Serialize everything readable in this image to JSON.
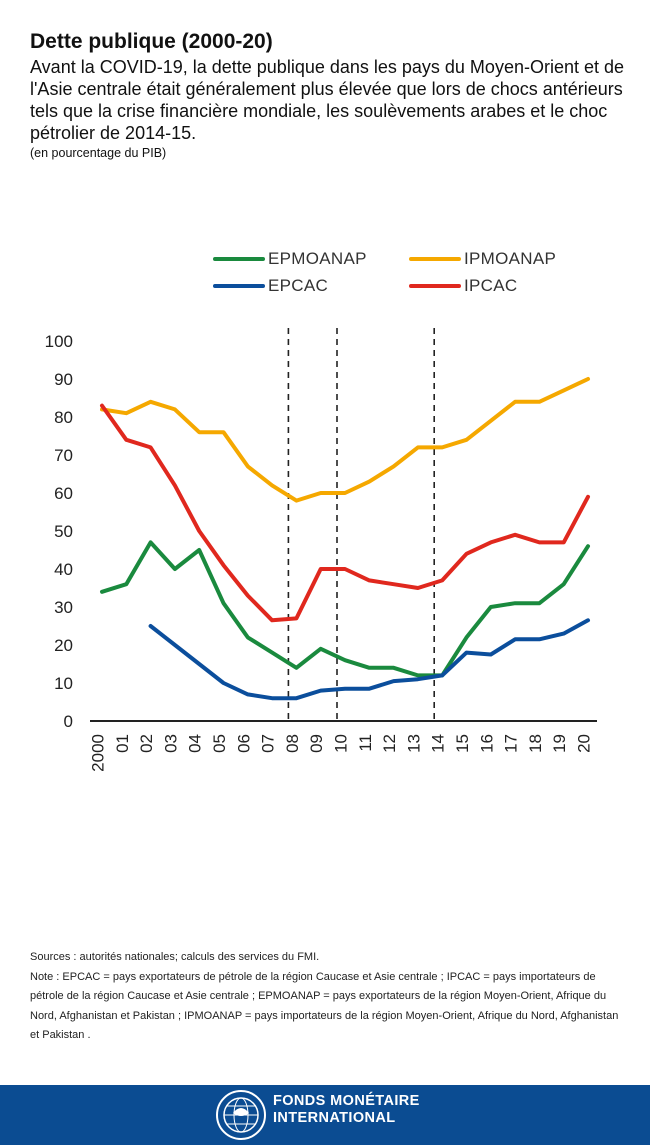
{
  "title": "Dette publique (2000-20)",
  "subtitle": "Avant la COVID-19, la dette publique dans les pays du Moyen-Orient et de l'Asie centrale était généralement plus élevée que lors de chocs antérieurs tels que la crise financière mondiale, les soulèvements arabes et le choc pétrolier de 2014-15.",
  "units": "(en pourcentage du PIB)",
  "chart_data": {
    "type": "line",
    "x": [
      "2000",
      "01",
      "02",
      "03",
      "04",
      "05",
      "06",
      "07",
      "08",
      "09",
      "10",
      "11",
      "12",
      "13",
      "14",
      "15",
      "16",
      "17",
      "18",
      "19",
      "20"
    ],
    "ylim": [
      0,
      100
    ],
    "yticks": [
      0,
      10,
      20,
      30,
      40,
      50,
      60,
      70,
      80,
      90,
      100
    ],
    "vlines": [
      "08",
      "10",
      "14"
    ],
    "grid": false,
    "legend_position": "top",
    "series": [
      {
        "name": "EPMOANAP",
        "color": "#1a8a3e",
        "values": [
          34,
          36,
          47,
          40,
          45,
          31,
          22,
          18,
          14,
          19,
          16,
          14,
          14,
          12,
          12,
          22,
          30,
          31,
          31,
          36,
          46
        ]
      },
      {
        "name": "IPMOANAP",
        "color": "#f5a800",
        "values": [
          82,
          81,
          84,
          82,
          76,
          76,
          67,
          62,
          58,
          60,
          60,
          63,
          67,
          72,
          72,
          74,
          79,
          84,
          84,
          87,
          90
        ]
      },
      {
        "name": "EPCAC",
        "color": "#0b4e9c",
        "values": [
          null,
          null,
          25,
          20,
          15,
          10,
          7,
          6,
          6,
          8,
          8.5,
          8.5,
          10.5,
          11,
          12,
          18,
          17.5,
          21.5,
          21.5,
          23,
          26.5
        ]
      },
      {
        "name": "IPCAC",
        "color": "#e0281e",
        "values": [
          83,
          74,
          72,
          62,
          50,
          41,
          33,
          26.5,
          27,
          40,
          40,
          37,
          36,
          35,
          37,
          44,
          47,
          49,
          47,
          47,
          59
        ]
      }
    ]
  },
  "notes": {
    "sources": "Sources : autorités nationales; calculs des services du FMI.",
    "note": "Note : EPCAC = pays exportateurs de pétrole de la région Caucase et Asie centrale ; IPCAC = pays importateurs de pétrole de la région Caucase et Asie centrale ; EPMOANAP = pays exportateurs de la région Moyen-Orient, Afrique du Nord, Afghanistan et Pakistan ; IPMOANAP = pays importateurs de la région Moyen-Orient, Afrique du Nord, Afghanistan et Pakistan ."
  },
  "footer": {
    "line1": "FONDS MONÉTAIRE",
    "line2": "INTERNATIONAL",
    "background": "#0b4c92",
    "logo_icon": "imf-seal-icon"
  }
}
